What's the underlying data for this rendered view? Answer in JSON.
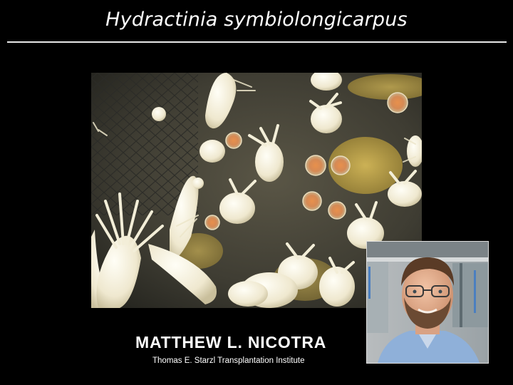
{
  "slide": {
    "title": "Hydractinia symbiolongicarpus",
    "presenter_name": "MATTHEW L. NICOTRA",
    "presenter_affiliation": "Thomas E. Starzl Transplantation Institute"
  },
  "images": {
    "main_photo": "hydractinia-colony-micrograph",
    "portrait_photo": "presenter-portrait"
  },
  "colors": {
    "background": "#000000",
    "text": "#ffffff",
    "rule": "#e8e8e8"
  }
}
